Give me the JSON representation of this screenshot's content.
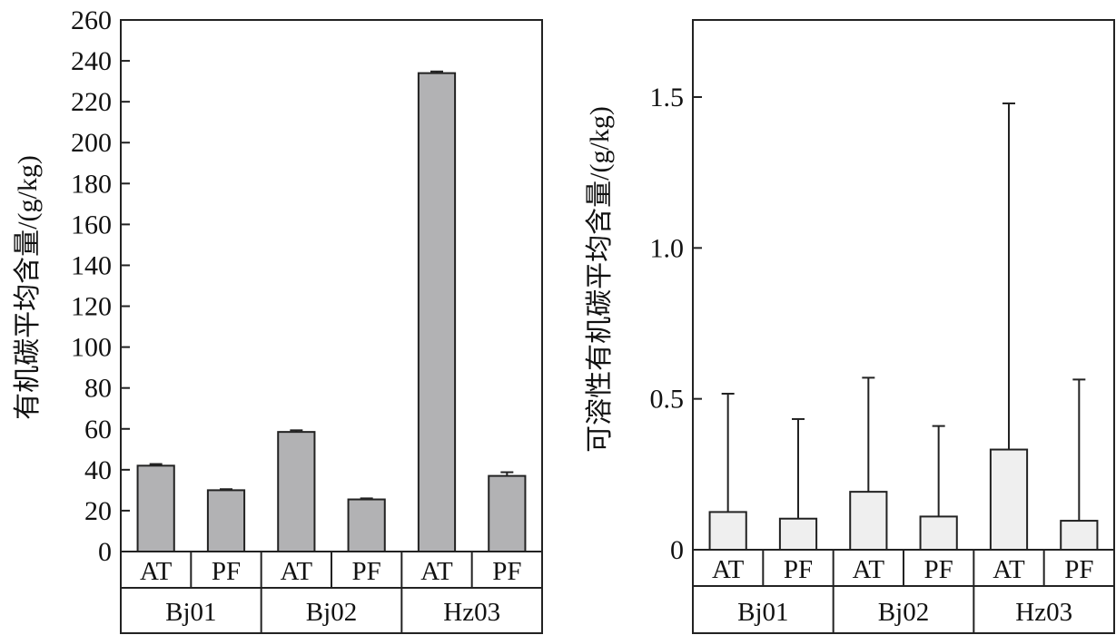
{
  "chart_data": [
    {
      "type": "bar",
      "ylabel": "有机碳平均含量/(g/kg)",
      "ylim": [
        0,
        260
      ],
      "yticks": [
        0,
        20,
        40,
        60,
        80,
        100,
        120,
        140,
        160,
        180,
        200,
        220,
        240,
        260
      ],
      "ytick_labels": [
        "0",
        "20",
        "40",
        "60",
        "80",
        "100",
        "120",
        "140",
        "160",
        "180",
        "200",
        "220",
        "240",
        "260"
      ],
      "grid": false,
      "categories": [
        "AT",
        "PF",
        "AT",
        "PF",
        "AT",
        "PF"
      ],
      "groups": [
        "Bj01",
        "Bj02",
        "Hz03"
      ],
      "values": [
        42,
        30,
        58.5,
        25.5,
        234,
        37
      ],
      "errors": [
        0.8,
        0.5,
        0.8,
        0.5,
        0.8,
        1.8
      ],
      "bar_color": "#b2b2b4"
    },
    {
      "type": "bar",
      "ylabel": "可溶性有机碳平均含量/(g/kg)",
      "ylim": [
        0,
        1.75
      ],
      "yticks": [
        0,
        0.5,
        1.0,
        1.5
      ],
      "ytick_labels": [
        "0",
        "0.5",
        "1.0",
        "1.5"
      ],
      "grid": false,
      "categories": [
        "AT",
        "PF",
        "AT",
        "PF",
        "AT",
        "PF"
      ],
      "groups": [
        "Bj01",
        "Bj02",
        "Hz03"
      ],
      "values": [
        0.125,
        0.103,
        0.192,
        0.11,
        0.332,
        0.096
      ],
      "errors": [
        0.392,
        0.33,
        0.378,
        0.3,
        1.147,
        0.468
      ],
      "bar_color": "#efefef"
    }
  ]
}
